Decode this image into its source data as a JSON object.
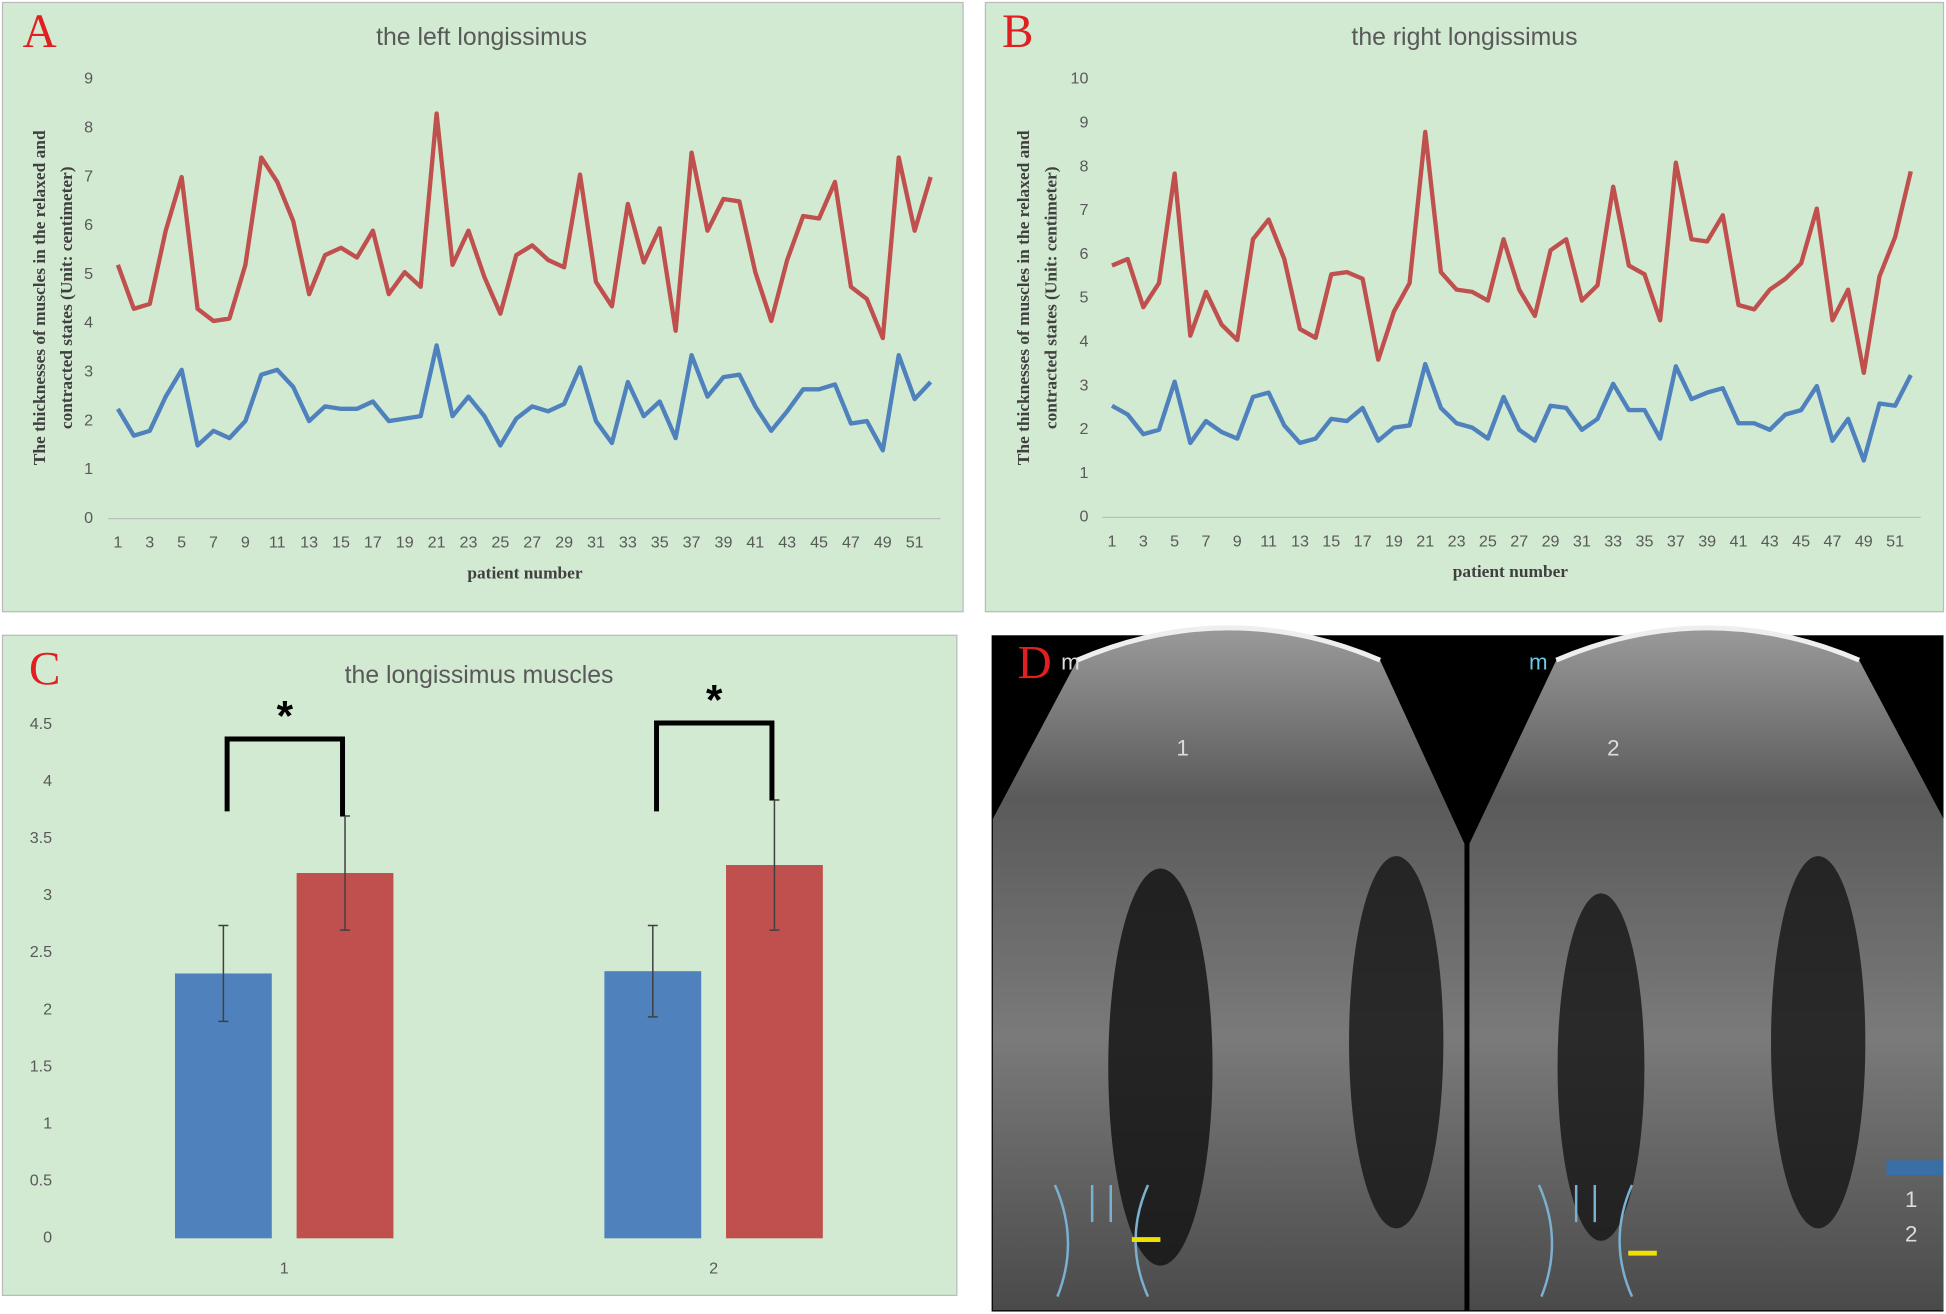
{
  "chart_data": [
    {
      "type": "line",
      "panel_label": "A",
      "title": "the left longissimus",
      "ylabel": [
        "The thicknesses of muscles in the relaxed and",
        "contracted states (Unit:  centimeter)"
      ],
      "xlabel": "patient  number",
      "categories": [
        "1",
        null,
        "3",
        null,
        "5",
        null,
        "7",
        null,
        "9",
        null,
        "11",
        null,
        "13",
        null,
        "15",
        null,
        "17",
        null,
        "19",
        null,
        "21",
        null,
        "23",
        null,
        "25",
        null,
        "27",
        null,
        "29",
        null,
        "31",
        null,
        "33",
        null,
        "35",
        null,
        "37",
        null,
        "39",
        null,
        "41",
        null,
        "43",
        null,
        "45",
        null,
        "47",
        null,
        "49",
        null,
        "51",
        null
      ],
      "series": [
        {
          "color": "#c0504d",
          "values": [
            5.2,
            4.3,
            4.4,
            5.9,
            7.0,
            4.3,
            4.05,
            4.1,
            5.2,
            7.4,
            6.9,
            6.1,
            4.6,
            5.4,
            5.55,
            5.35,
            5.9,
            4.6,
            5.05,
            4.75,
            8.3,
            5.2,
            5.9,
            4.95,
            4.2,
            5.4,
            5.6,
            5.3,
            5.15,
            7.05,
            4.85,
            4.35,
            6.45,
            5.25,
            5.95,
            3.85,
            7.5,
            5.9,
            6.55,
            6.5,
            5.05,
            4.05,
            5.3,
            6.2,
            6.15,
            6.9,
            4.75,
            4.5,
            3.7,
            7.4,
            5.9,
            7.0
          ]
        },
        {
          "color": "#4f81bd",
          "values": [
            2.25,
            1.7,
            1.8,
            2.5,
            3.05,
            1.5,
            1.8,
            1.65,
            2.0,
            2.95,
            3.05,
            2.7,
            2.0,
            2.3,
            2.25,
            2.25,
            2.4,
            2.0,
            2.05,
            2.1,
            3.55,
            2.1,
            2.5,
            2.1,
            1.5,
            2.05,
            2.3,
            2.2,
            2.35,
            3.1,
            2.0,
            1.55,
            2.8,
            2.1,
            2.4,
            1.65,
            3.35,
            2.5,
            2.9,
            2.95,
            2.3,
            1.8,
            2.2,
            2.65,
            2.65,
            2.75,
            1.95,
            2.0,
            1.4,
            3.35,
            2.45,
            2.8
          ]
        }
      ],
      "ylim": [
        0,
        9
      ],
      "yticks": [
        0,
        1,
        2,
        3,
        4,
        5,
        6,
        7,
        8,
        9
      ]
    },
    {
      "type": "line",
      "panel_label": "B",
      "title": "the right longissimus",
      "ylabel": [
        "The thicknesses of muscles in the relaxed and",
        "contracted states (Unit:  centimeter)"
      ],
      "xlabel": "patient  number",
      "categories": [
        "1",
        null,
        "3",
        null,
        "5",
        null,
        "7",
        null,
        "9",
        null,
        "11",
        null,
        "13",
        null,
        "15",
        null,
        "17",
        null,
        "19",
        null,
        "21",
        null,
        "23",
        null,
        "25",
        null,
        "27",
        null,
        "29",
        null,
        "31",
        null,
        "33",
        null,
        "35",
        null,
        "37",
        null,
        "39",
        null,
        "41",
        null,
        "43",
        null,
        "45",
        null,
        "47",
        null,
        "49",
        null,
        "51",
        null
      ],
      "series": [
        {
          "color": "#c0504d",
          "values": [
            5.75,
            5.9,
            4.8,
            5.35,
            7.85,
            4.15,
            5.15,
            4.4,
            4.05,
            6.35,
            6.8,
            5.9,
            4.3,
            4.1,
            5.55,
            5.6,
            5.45,
            3.6,
            4.7,
            5.35,
            8.8,
            5.6,
            5.2,
            5.15,
            4.95,
            6.35,
            5.2,
            4.6,
            6.1,
            6.35,
            4.95,
            5.3,
            7.55,
            5.75,
            5.55,
            4.5,
            8.1,
            6.35,
            6.3,
            6.9,
            4.85,
            4.75,
            5.2,
            5.45,
            5.8,
            7.05,
            4.5,
            5.2,
            3.3,
            5.5,
            6.4,
            7.9
          ]
        },
        {
          "color": "#4f81bd",
          "values": [
            2.55,
            2.35,
            1.9,
            2.0,
            3.1,
            1.7,
            2.2,
            1.95,
            1.8,
            2.75,
            2.85,
            2.1,
            1.7,
            1.8,
            2.25,
            2.2,
            2.5,
            1.75,
            2.05,
            2.1,
            3.5,
            2.5,
            2.15,
            2.05,
            1.8,
            2.75,
            2.0,
            1.75,
            2.55,
            2.5,
            2.0,
            2.25,
            3.05,
            2.45,
            2.45,
            1.8,
            3.45,
            2.7,
            2.85,
            2.95,
            2.15,
            2.15,
            2.0,
            2.35,
            2.45,
            3.0,
            1.75,
            2.25,
            1.3,
            2.6,
            2.55,
            3.25
          ]
        }
      ],
      "ylim": [
        0,
        10
      ],
      "yticks": [
        0,
        1,
        2,
        3,
        4,
        5,
        6,
        7,
        8,
        9,
        10
      ]
    },
    {
      "type": "bar",
      "panel_label": "C",
      "title": "the longissimus muscles",
      "categories": [
        "1",
        "2"
      ],
      "series": [
        {
          "color": "#4f81bd",
          "values": [
            2.32,
            2.34
          ],
          "errors": [
            0.42,
            0.4
          ]
        },
        {
          "color": "#c0504d",
          "values": [
            3.2,
            3.27
          ],
          "errors": [
            0.5,
            0.57
          ]
        }
      ],
      "annotations": [
        "*",
        "*"
      ],
      "ylim": [
        0,
        4.5
      ],
      "yticks": [
        0,
        0.5,
        1,
        1.5,
        2,
        2.5,
        3,
        3.5,
        4,
        4.5
      ]
    }
  ],
  "ultrasound": {
    "panel_label": "D",
    "labels": [
      "m",
      "m",
      "1",
      "2",
      "1",
      "2"
    ]
  }
}
